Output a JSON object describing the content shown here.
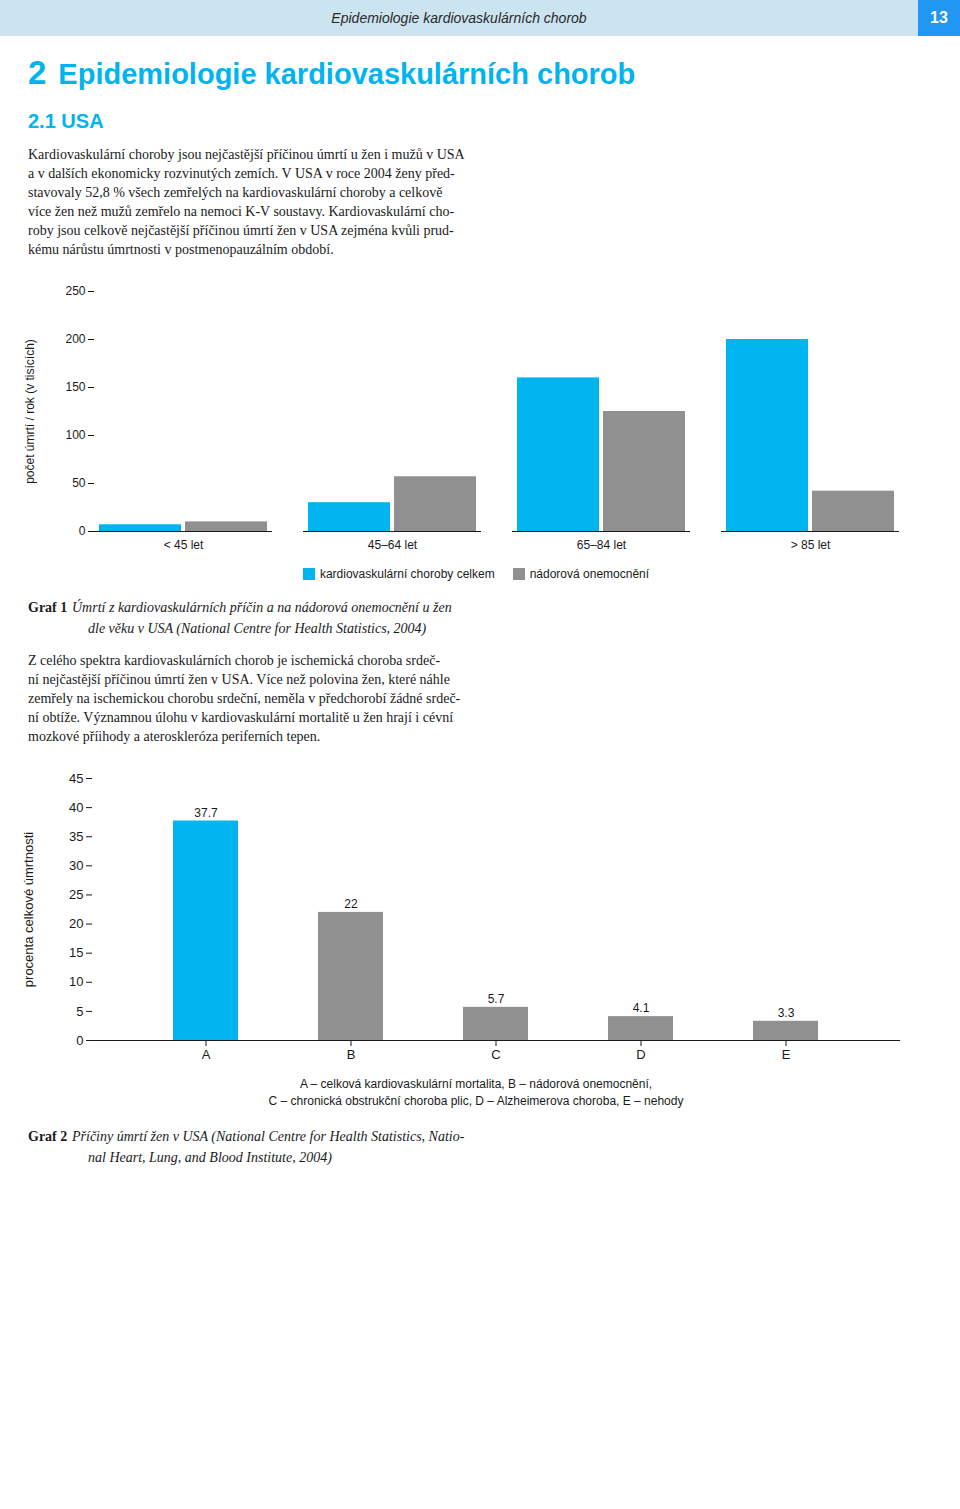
{
  "header_text": "Epidemiologie kardiovaskulárních chorob",
  "header_number": "13",
  "chapter_number": "2",
  "chapter_title": "Epidemiologie kardiovaskulárních chorob",
  "section_title": "2.1 USA",
  "body1": [
    "Kardiovaskulární choroby jsou nejčastější příčinou úmrtí u žen i mužů v USA",
    "a v dalších ekonomicky rozvinutých zemích. V USA v roce 2004 ženy před-",
    "stavovaly 52,8 % všech zemřelých na kardiovaskulární choroby a celkově",
    "více žen než mužů zemřelo na nemoci K-V soustavy. Kardiovaskulární cho-",
    "roby jsou celkově nejčastější příčinou úmrtí žen v USA zejména kvůli prud-",
    "kému nárůstu úmrtnosti v postmenopauzálním období."
  ],
  "body2": [
    "Z celého spektra kardiovaskulárních chorob je ischemická choroba srdeč-",
    "ní nejčastější příčinou úmrtí žen v USA. Více než polovina žen, které náhle",
    "zemřely na ischemickou chorobu srdeční, neměla v předchorobí žádné srdeč-",
    "ní obtíže. Významnou úlohu v kardiovaskulární mortalitě u žen hrají i cévní",
    "mozkové příihody a ateroskleróza periferních tepen."
  ],
  "chart_data": [
    {
      "type": "bar",
      "categories": [
        "< 45 let",
        "45–64 let",
        "65–84 let",
        "> 85 let"
      ],
      "series": [
        {
          "name": "kardiovaskulární choroby celkem",
          "color": "#00b4f0",
          "values": [
            7,
            30,
            160,
            200
          ]
        },
        {
          "name": "nádorová onemocnění",
          "color": "#909090",
          "values": [
            10,
            57,
            125,
            42
          ]
        }
      ],
      "ylabel": "počet úmrtí / rok (v tisících)",
      "ylim": [
        0,
        250
      ],
      "yticks": [
        0,
        50,
        100,
        150,
        200,
        250
      ],
      "grid": false,
      "legend": "bottom",
      "caption_label": "Graf 1",
      "caption": [
        "Úmrtí z kardiovaskulárních příčin a na nádorová onemocnění u žen",
        "dle věku v USA (National Centre for Health Statistics, 2004)"
      ]
    },
    {
      "type": "bar",
      "categories": [
        "A",
        "B",
        "C",
        "D",
        "E"
      ],
      "values": [
        37.7,
        22,
        5.7,
        4.1,
        3.3
      ],
      "colors": [
        "#00b4f0",
        "#909090",
        "#909090",
        "#909090",
        "#909090"
      ],
      "ylabel": "procenta celkové úmrtnosti",
      "ylim": [
        0,
        45
      ],
      "yticks": [
        0,
        5,
        10,
        15,
        20,
        25,
        30,
        35,
        40,
        45
      ],
      "grid": false,
      "data_labels": true,
      "annotations": [
        "A – celková kardiovaskulární mortalita, B – nádorová onemocnění,",
        "C – chronická obstrukční choroba plic, D – Alzheimerova choroba, E – nehody"
      ],
      "caption_label": "Graf 2",
      "caption": [
        "Příčiny úmrtí žen v USA (National Centre for Health Statistics, Natio-",
        "nal Heart, Lung, and Blood Institute, 2004)"
      ]
    }
  ]
}
